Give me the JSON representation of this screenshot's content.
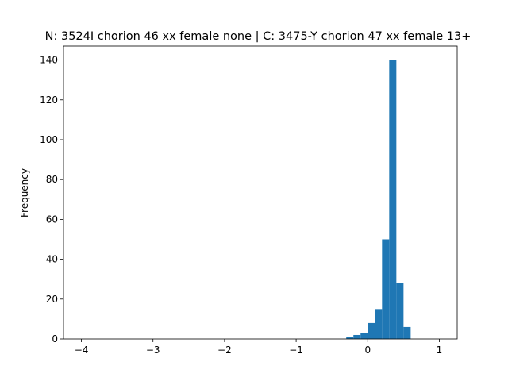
{
  "chart_data": {
    "type": "bar",
    "title": "N: 3524I chorion 46 xx female none | C: 3475-Y chorion 47 xx female 13+",
    "xlabel": "",
    "ylabel": "Frequency",
    "xlim": [
      -4.25,
      1.25
    ],
    "ylim": [
      0,
      147
    ],
    "x_ticks": [
      -4,
      -3,
      -2,
      -1,
      0,
      1
    ],
    "y_ticks": [
      0,
      20,
      40,
      60,
      80,
      100,
      120,
      140
    ],
    "bar_color": "#1f77b4",
    "grid": false,
    "bins": [
      {
        "x0": -0.3,
        "x1": -0.2,
        "count": 1
      },
      {
        "x0": -0.2,
        "x1": -0.1,
        "count": 2
      },
      {
        "x0": -0.1,
        "x1": 0.0,
        "count": 3
      },
      {
        "x0": 0.0,
        "x1": 0.1,
        "count": 8
      },
      {
        "x0": 0.1,
        "x1": 0.2,
        "count": 15
      },
      {
        "x0": 0.2,
        "x1": 0.3,
        "count": 50
      },
      {
        "x0": 0.3,
        "x1": 0.4,
        "count": 140
      },
      {
        "x0": 0.4,
        "x1": 0.5,
        "count": 28
      },
      {
        "x0": 0.5,
        "x1": 0.6,
        "count": 6
      }
    ]
  }
}
